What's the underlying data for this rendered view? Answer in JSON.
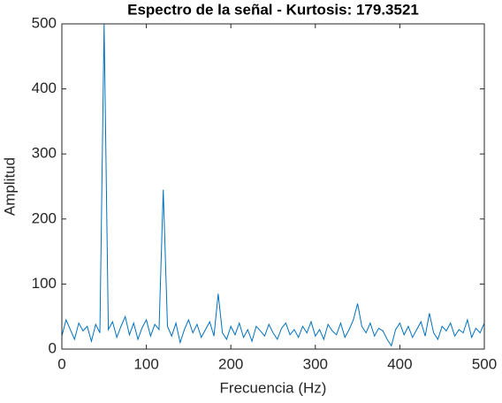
{
  "chart_data": {
    "type": "line",
    "title": "Espectro de la señal - Kurtosis: 179.3521",
    "xlabel": "Frecuencia (Hz)",
    "ylabel": "Amplitud",
    "x": [
      0,
      5,
      10,
      15,
      20,
      25,
      30,
      35,
      40,
      45,
      50,
      55,
      60,
      65,
      70,
      75,
      80,
      85,
      90,
      95,
      100,
      105,
      110,
      115,
      120,
      125,
      130,
      135,
      140,
      145,
      150,
      155,
      160,
      165,
      170,
      175,
      180,
      185,
      190,
      195,
      200,
      205,
      210,
      215,
      220,
      225,
      230,
      235,
      240,
      245,
      250,
      255,
      260,
      265,
      270,
      275,
      280,
      285,
      290,
      295,
      300,
      305,
      310,
      315,
      320,
      325,
      330,
      335,
      340,
      345,
      350,
      355,
      360,
      365,
      370,
      375,
      380,
      385,
      390,
      395,
      400,
      405,
      410,
      415,
      420,
      425,
      430,
      435,
      440,
      445,
      450,
      455,
      460,
      465,
      470,
      475,
      480,
      485,
      490,
      495,
      500
    ],
    "series": [
      {
        "color": "#0072bd",
        "values": [
          20,
          45,
          30,
          15,
          40,
          28,
          35,
          12,
          38,
          25,
          500,
          30,
          42,
          18,
          35,
          50,
          22,
          40,
          15,
          33,
          45,
          20,
          38,
          30,
          245,
          35,
          20,
          40,
          10,
          30,
          45,
          25,
          38,
          18,
          30,
          42,
          20,
          85,
          25,
          15,
          35,
          22,
          40,
          18,
          30,
          12,
          35,
          28,
          20,
          38,
          25,
          15,
          32,
          40,
          22,
          30,
          18,
          35,
          25,
          42,
          20,
          30,
          15,
          38,
          28,
          22,
          40,
          18,
          30,
          45,
          70,
          35,
          25,
          40,
          20,
          32,
          28,
          15,
          5,
          30,
          40,
          22,
          35,
          18,
          30,
          42,
          20,
          55,
          25,
          15,
          35,
          28,
          40,
          20,
          30,
          25,
          45,
          18,
          32,
          25,
          40
        ]
      }
    ],
    "xlim": [
      0,
      500
    ],
    "xticks": [
      0,
      100,
      200,
      300,
      400,
      500
    ],
    "ylim": [
      0,
      500
    ],
    "yticks": [
      0,
      100,
      200,
      300,
      400,
      500
    ]
  }
}
